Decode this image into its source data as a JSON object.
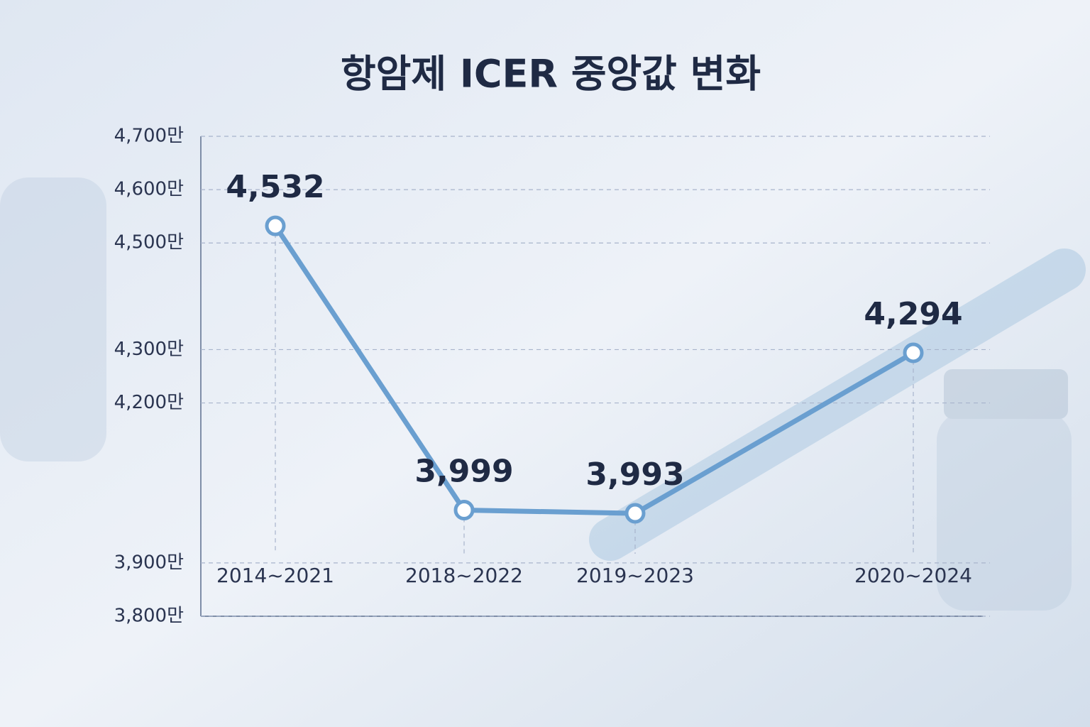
{
  "chart_data": {
    "type": "line",
    "title": "항암제 ICER 중앙값 변화",
    "categories": [
      "2014~2021",
      "2018~2022",
      "2019~2023",
      "2020~2024"
    ],
    "values": [
      4532,
      3999,
      3993,
      4294
    ],
    "value_labels": [
      "4,532",
      "3,999",
      "3,993",
      "4,294"
    ],
    "color": "#6a9fd0",
    "ylim": [
      3800,
      4700
    ],
    "yticks": [
      {
        "value": 3800,
        "label": "3,800만"
      },
      {
        "value": 3900,
        "label": "3,900만"
      },
      {
        "value": 4200,
        "label": "4,200만"
      },
      {
        "value": 4300,
        "label": "4,300만"
      },
      {
        "value": 4500,
        "label": "4,500만"
      },
      {
        "value": 4600,
        "label": "4,600만"
      },
      {
        "value": 4700,
        "label": "4,700만"
      }
    ],
    "grid": true
  }
}
